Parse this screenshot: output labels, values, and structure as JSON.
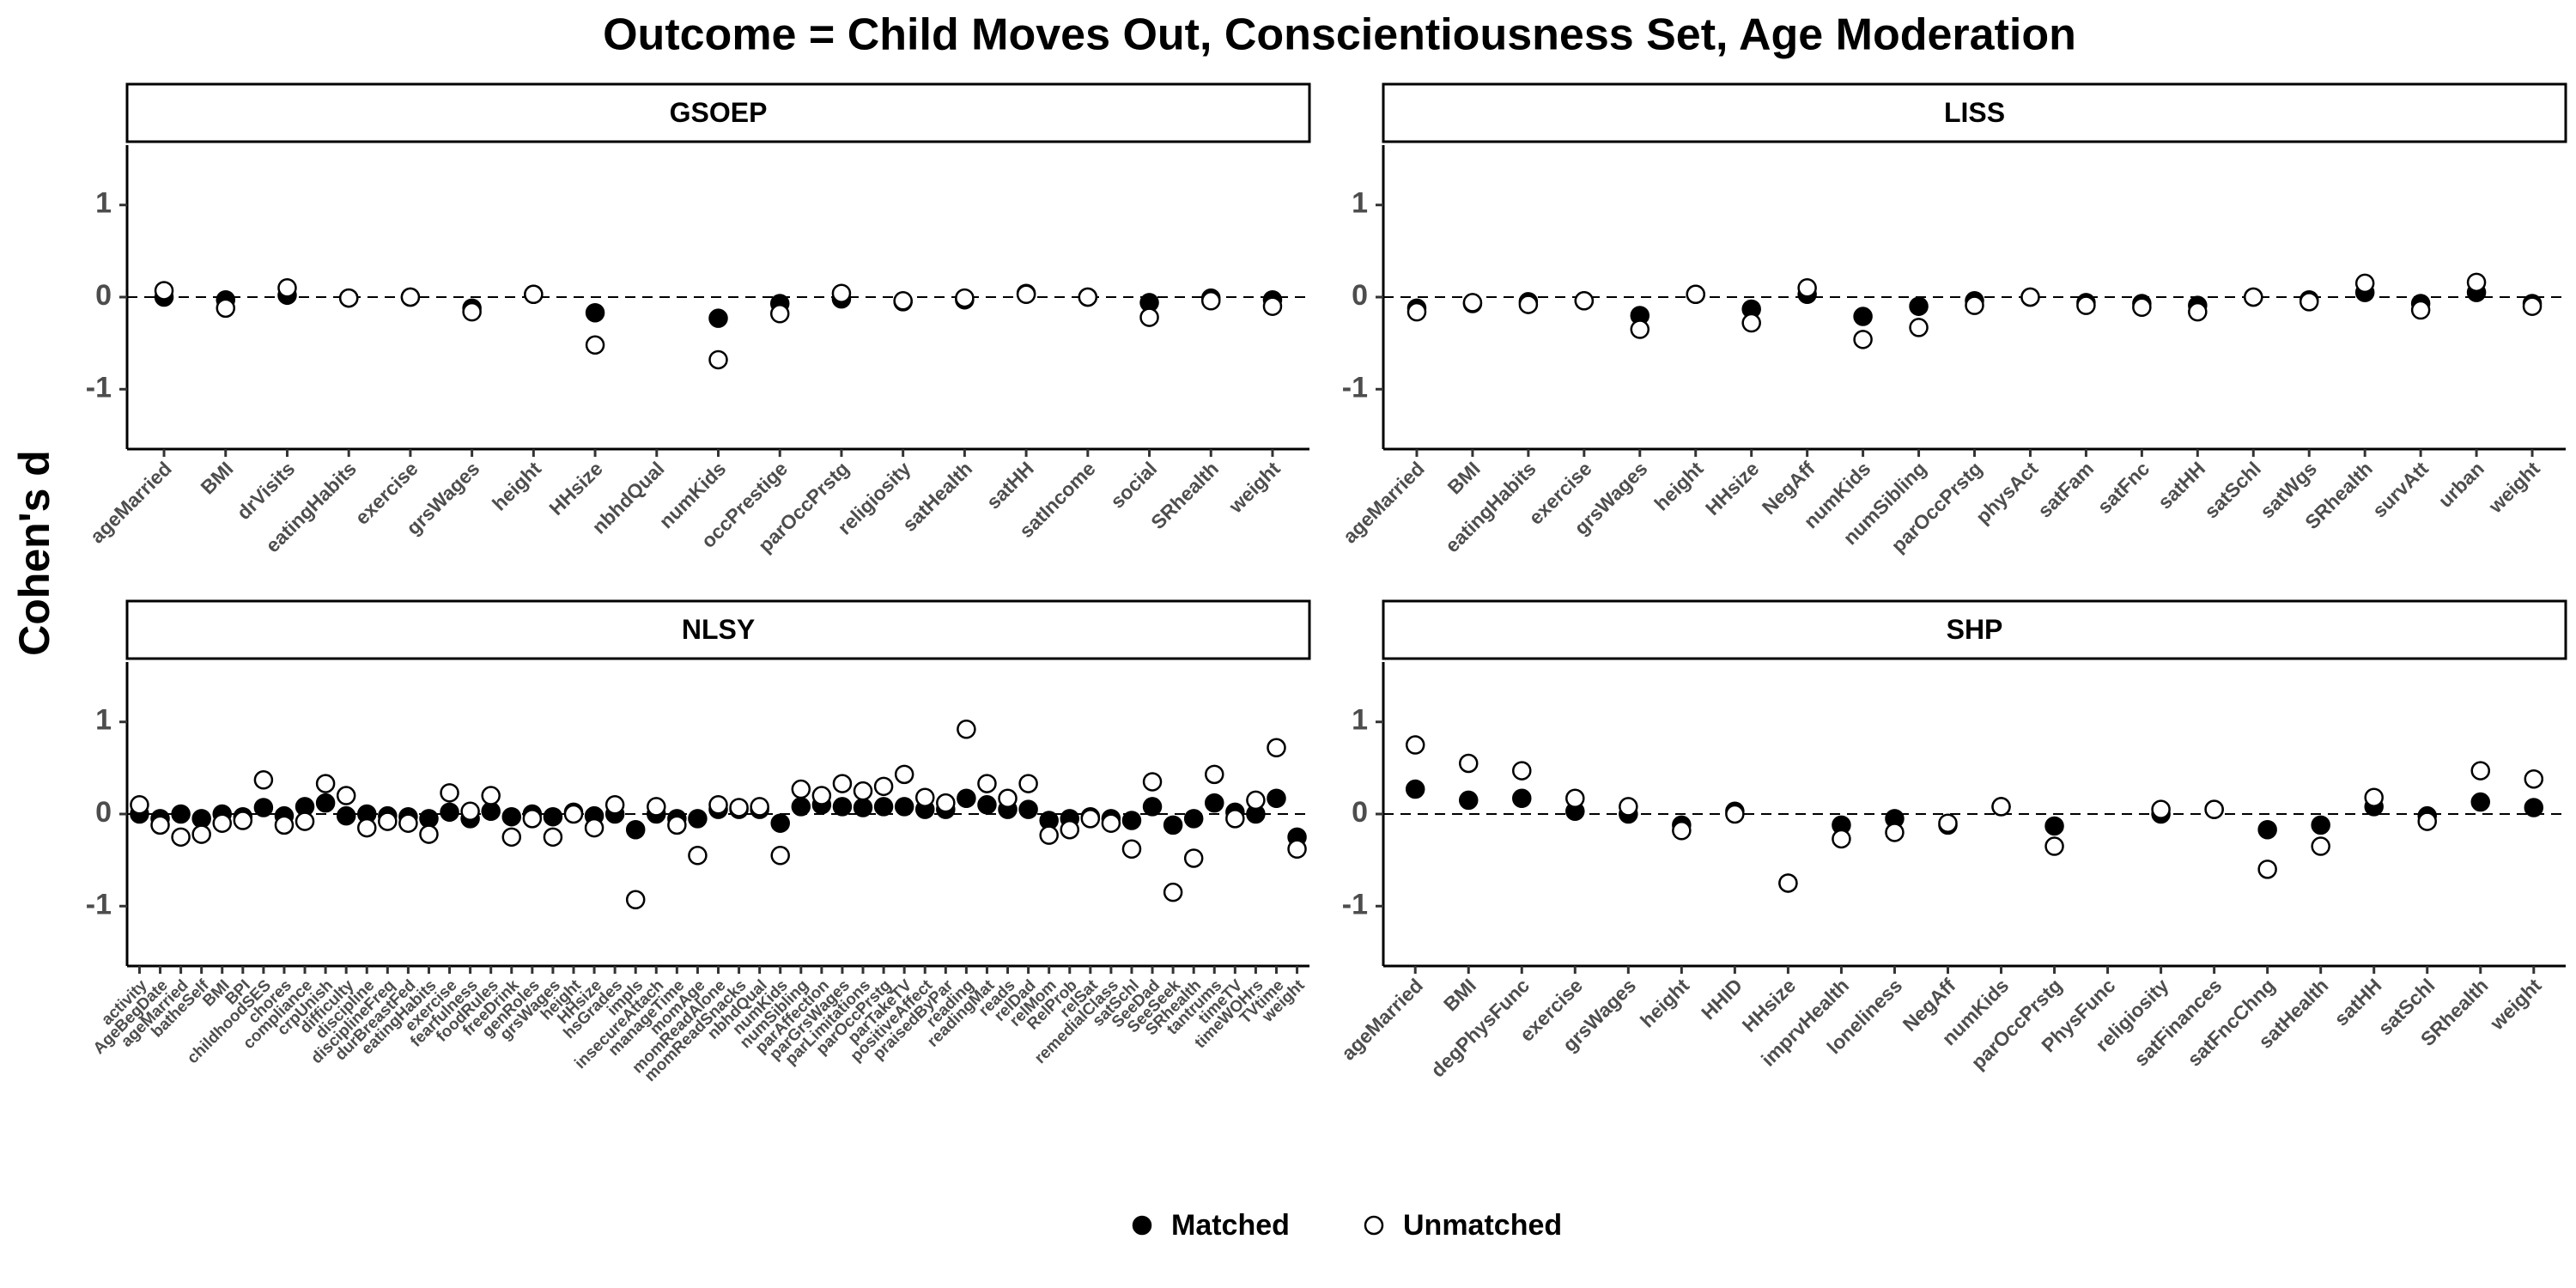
{
  "title": "Outcome = Child Moves Out, Conscientiousness Set, Age Moderation",
  "y_label": "Cohen's d",
  "chart_data": [
    {
      "type": "scatter",
      "title": "GSOEP",
      "categories": [
        "ageMarried",
        "BMI",
        "drVisits",
        "eatingHabits",
        "exercise",
        "grsWages",
        "height",
        "HHsize",
        "nbhdQual",
        "numKids",
        "occPrestige",
        "parOccPrstg",
        "religiosity",
        "satHealth",
        "satHH",
        "satIncome",
        "social",
        "SRhealth",
        "weight"
      ],
      "series": [
        {
          "name": "Matched",
          "color": "#000000",
          "marker": "filled",
          "values": [
            0.0,
            -0.03,
            0.02,
            -0.01,
            0.0,
            -0.12,
            0.03,
            -0.17,
            null,
            -0.23,
            -0.07,
            -0.02,
            -0.05,
            -0.03,
            0.04,
            0.0,
            -0.06,
            -0.01,
            -0.03
          ]
        },
        {
          "name": "Unmatched",
          "color": "#000000",
          "marker": "open",
          "values": [
            0.07,
            -0.12,
            0.1,
            -0.01,
            0.0,
            -0.16,
            0.03,
            -0.52,
            null,
            -0.68,
            -0.18,
            0.04,
            -0.04,
            -0.01,
            0.03,
            0.0,
            -0.22,
            -0.04,
            -0.1
          ]
        }
      ],
      "ylim": [
        -1.65,
        1.65
      ],
      "yticks": [
        -1,
        0,
        1
      ],
      "hline": 0
    },
    {
      "type": "scatter",
      "title": "LISS",
      "categories": [
        "ageMarried",
        "BMI",
        "eatingHabits",
        "exercise",
        "grsWages",
        "height",
        "HHsize",
        "NegAff",
        "numKids",
        "numSibling",
        "parOccPrstg",
        "physAct",
        "satFam",
        "satFnc",
        "satHH",
        "satSchl",
        "satWgs",
        "SRhealth",
        "survAtt",
        "urban",
        "weight"
      ],
      "series": [
        {
          "name": "Matched",
          "color": "#000000",
          "marker": "filled",
          "values": [
            -0.12,
            -0.07,
            -0.05,
            -0.04,
            -0.2,
            0.03,
            -0.13,
            0.03,
            -0.21,
            -0.1,
            -0.04,
            0.0,
            -0.06,
            -0.07,
            -0.09,
            0.0,
            -0.03,
            0.05,
            -0.07,
            0.05,
            -0.07
          ]
        },
        {
          "name": "Unmatched",
          "color": "#000000",
          "marker": "open",
          "values": [
            -0.16,
            -0.06,
            -0.08,
            -0.04,
            -0.35,
            0.03,
            -0.28,
            0.1,
            -0.46,
            -0.33,
            -0.09,
            0.0,
            -0.09,
            -0.11,
            -0.16,
            0.0,
            -0.05,
            0.15,
            -0.14,
            0.16,
            -0.1
          ]
        }
      ],
      "ylim": [
        -1.65,
        1.65
      ],
      "yticks": [
        -1,
        0,
        1
      ],
      "hline": 0
    },
    {
      "type": "scatter",
      "title": "NLSY",
      "categories": [
        "activity",
        "AgeBegDate",
        "ageMarried",
        "batheSelf",
        "BMI",
        "BPI",
        "childhoodSES",
        "chores",
        "compliance",
        "crpUnish",
        "difficulty",
        "discipline",
        "disciplineFreq",
        "durBreastFed",
        "eatingHabits",
        "exercise",
        "fearfulness",
        "foodRules",
        "freeDrink",
        "genRoles",
        "grsWages",
        "height",
        "HHsize",
        "hsGrades",
        "impls",
        "insecureAttach",
        "manageTime",
        "momAge",
        "momReadAlone",
        "momReadSnacks",
        "nbhdQual",
        "numKids",
        "numSibling",
        "parAffection",
        "parGrsWages",
        "parLimitations",
        "parOccPrstg",
        "parTakeTV",
        "positiveAffect",
        "praisedByPar",
        "reading",
        "readingMat",
        "reads",
        "relDad",
        "relMom",
        "RelProb",
        "relSat",
        "remedialClass",
        "satSchl",
        "SeeDad",
        "SeeSeek",
        "SRhealth",
        "tantrums",
        "timeTV",
        "timeWOHrs",
        "TVtime",
        "weight"
      ],
      "series": [
        {
          "name": "Matched",
          "color": "#000000",
          "marker": "filled",
          "values": [
            0.0,
            -0.05,
            0.0,
            -0.05,
            0.0,
            -0.03,
            0.07,
            -0.02,
            0.08,
            0.12,
            -0.02,
            0.0,
            -0.02,
            -0.03,
            -0.05,
            0.02,
            -0.05,
            0.03,
            -0.03,
            0.0,
            -0.03,
            0.02,
            -0.02,
            0.0,
            -0.17,
            0.0,
            -0.05,
            -0.05,
            0.05,
            0.05,
            0.05,
            -0.1,
            0.08,
            0.1,
            0.08,
            0.07,
            0.08,
            0.08,
            0.05,
            0.05,
            0.17,
            0.1,
            0.05,
            0.05,
            -0.07,
            -0.05,
            -0.03,
            -0.05,
            -0.07,
            0.08,
            -0.12,
            -0.05,
            0.12,
            0.02,
            0.0,
            0.17,
            -0.25
          ]
        },
        {
          "name": "Unmatched",
          "color": "#000000",
          "marker": "open",
          "values": [
            0.1,
            -0.12,
            -0.25,
            -0.22,
            -0.1,
            -0.07,
            0.37,
            -0.12,
            -0.08,
            0.33,
            0.2,
            -0.15,
            -0.08,
            -0.1,
            -0.22,
            0.23,
            0.03,
            0.2,
            -0.25,
            -0.05,
            -0.25,
            0.0,
            -0.15,
            0.1,
            -0.93,
            0.08,
            -0.12,
            -0.45,
            0.1,
            0.07,
            0.08,
            -0.45,
            0.27,
            0.2,
            0.33,
            0.25,
            0.3,
            0.43,
            0.18,
            0.12,
            0.92,
            0.33,
            0.17,
            0.33,
            -0.23,
            -0.17,
            -0.05,
            -0.1,
            -0.38,
            0.35,
            -0.85,
            -0.48,
            0.43,
            -0.05,
            0.15,
            0.72,
            -0.38
          ]
        }
      ],
      "ylim": [
        -1.65,
        1.65
      ],
      "yticks": [
        -1,
        0,
        1
      ],
      "hline": 0
    },
    {
      "type": "scatter",
      "title": "SHP",
      "categories": [
        "ageMarried",
        "BMI",
        "degPhysFunc",
        "exercise",
        "grsWages",
        "height",
        "HHID",
        "HHsize",
        "imprvHealth",
        "loneliness",
        "NegAff",
        "numKids",
        "parOccPrstg",
        "PhysFunc",
        "religiosity",
        "satFinances",
        "satFncChng",
        "satHealth",
        "satHH",
        "satSchl",
        "SRhealth",
        "weight"
      ],
      "series": [
        {
          "name": "Matched",
          "color": "#000000",
          "marker": "filled",
          "values": [
            0.27,
            0.15,
            0.17,
            0.03,
            0.0,
            -0.12,
            0.03,
            -0.75,
            -0.12,
            -0.05,
            -0.12,
            0.08,
            -0.13,
            null,
            0.0,
            0.05,
            -0.17,
            -0.12,
            0.08,
            -0.02,
            0.13,
            0.07
          ]
        },
        {
          "name": "Unmatched",
          "color": "#000000",
          "marker": "open",
          "values": [
            0.75,
            0.55,
            0.47,
            0.17,
            0.08,
            -0.18,
            0.0,
            -0.75,
            -0.27,
            -0.2,
            -0.1,
            0.08,
            -0.35,
            null,
            0.05,
            0.05,
            -0.6,
            -0.35,
            0.18,
            -0.08,
            0.47,
            0.38
          ]
        }
      ],
      "ylim": [
        -1.65,
        1.65
      ],
      "yticks": [
        -1,
        0,
        1
      ],
      "hline": 0
    }
  ]
}
